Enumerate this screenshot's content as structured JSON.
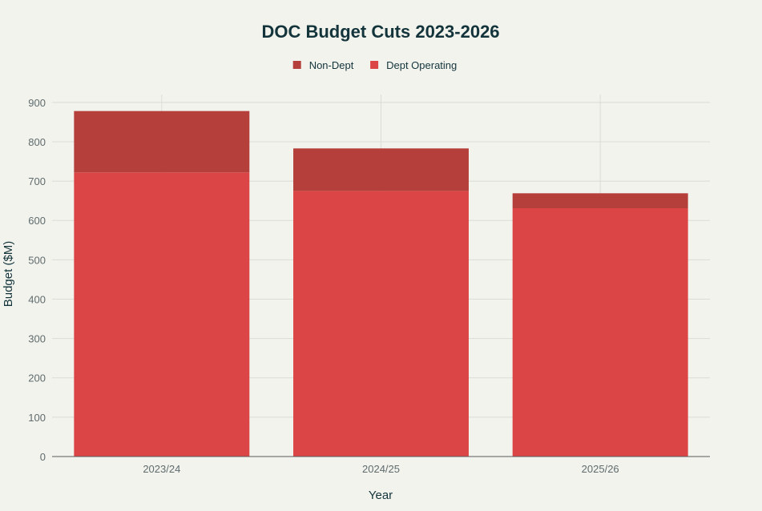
{
  "chart_data": {
    "type": "bar",
    "stacked": true,
    "title": "DOC Budget Cuts 2023-2026",
    "xlabel": "Year",
    "ylabel": "Budget ($M)",
    "categories": [
      "2023/24",
      "2024/25",
      "2025/26"
    ],
    "series": [
      {
        "name": "Dept Operating",
        "values": [
          722,
          675,
          631
        ],
        "color": "#db4545"
      },
      {
        "name": "Non-Dept",
        "values": [
          156,
          108,
          38
        ],
        "color": "#b43f3b"
      }
    ],
    "legend_order": [
      "Non-Dept",
      "Dept Operating"
    ],
    "legend_position": "top-center",
    "ylim": [
      0,
      920
    ],
    "yticks": [
      0,
      100,
      200,
      300,
      400,
      500,
      600,
      700,
      800,
      900
    ],
    "grid": true,
    "colors": {
      "background": "#f3f3ee",
      "grid": "#dcdcd6",
      "axis": "#5a5a5a",
      "title_text": "#13343b",
      "tick_text": "#5f6b6d"
    }
  }
}
